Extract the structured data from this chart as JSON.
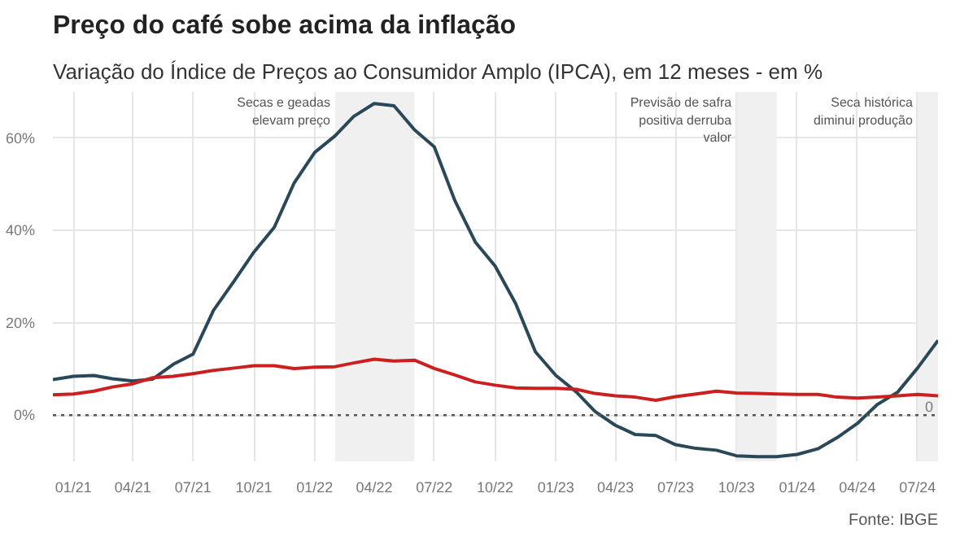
{
  "chart_data": {
    "type": "line",
    "title": "Preço do café sobe acima da inflação",
    "subtitle": "Variação do Índice de Preços ao Consumidor Amplo (IPCA), em 12 meses - em %",
    "annotations": [
      "Fonte: IBGE"
    ],
    "x": [
      "2020-12",
      "2021-01",
      "2021-02",
      "2021-03",
      "2021-04",
      "2021-05",
      "2021-06",
      "2021-07",
      "2021-08",
      "2021-09",
      "2021-10",
      "2021-11",
      "2021-12",
      "2022-01",
      "2022-02",
      "2022-03",
      "2022-04",
      "2022-05",
      "2022-06",
      "2022-07",
      "2022-08",
      "2022-09",
      "2022-10",
      "2022-11",
      "2022-12",
      "2023-01",
      "2023-02",
      "2023-03",
      "2023-04",
      "2023-05",
      "2023-06",
      "2023-07",
      "2023-08",
      "2023-09",
      "2023-10",
      "2023-11",
      "2023-12",
      "2024-01",
      "2024-02",
      "2024-03",
      "2024-04",
      "2024-05",
      "2024-06",
      "2024-07",
      "2024-08"
    ],
    "series": [
      {
        "color": "#2a4858",
        "values": [
          7.7,
          8.4,
          8.6,
          7.9,
          7.4,
          7.8,
          11.0,
          13.2,
          22.7,
          29.0,
          35.3,
          40.7,
          50.3,
          56.9,
          60.5,
          64.7,
          67.5,
          67.0,
          61.8,
          58.1,
          46.5,
          37.5,
          32.3,
          24.2,
          13.7,
          8.6,
          5.0,
          0.8,
          -2.2,
          -4.2,
          -4.4,
          -6.4,
          -7.2,
          -7.6,
          -8.8,
          -9.0,
          -9.0,
          -8.5,
          -7.3,
          -4.9,
          -1.8,
          2.3,
          5.0,
          10.2,
          16.2
        ]
      },
      {
        "color": "#cc1f1f",
        "values": [
          4.4,
          4.6,
          5.2,
          6.1,
          6.8,
          8.1,
          8.4,
          9.0,
          9.7,
          10.2,
          10.7,
          10.7,
          10.1,
          10.4,
          10.5,
          11.3,
          12.1,
          11.7,
          11.9,
          10.1,
          8.7,
          7.2,
          6.5,
          5.9,
          5.8,
          5.8,
          5.6,
          4.7,
          4.2,
          3.9,
          3.2,
          4.0,
          4.6,
          5.2,
          4.8,
          4.7,
          4.6,
          4.5,
          4.5,
          3.9,
          3.7,
          3.9,
          4.2,
          4.5,
          4.2
        ]
      }
    ],
    "xlim": [
      "2020-12",
      "2024-08"
    ],
    "xticks": [
      {
        "value": "2021-01",
        "label": "01/21"
      },
      {
        "value": "2021-04",
        "label": "04/21"
      },
      {
        "value": "2021-07",
        "label": "07/21"
      },
      {
        "value": "2021-10",
        "label": "10/21"
      },
      {
        "value": "2022-01",
        "label": "01/22"
      },
      {
        "value": "2022-04",
        "label": "04/22"
      },
      {
        "value": "2022-07",
        "label": "07/22"
      },
      {
        "value": "2022-10",
        "label": "10/22"
      },
      {
        "value": "2023-01",
        "label": "01/23"
      },
      {
        "value": "2023-04",
        "label": "04/23"
      },
      {
        "value": "2023-07",
        "label": "07/23"
      },
      {
        "value": "2023-10",
        "label": "10/23"
      },
      {
        "value": "2024-01",
        "label": "01/24"
      },
      {
        "value": "2024-04",
        "label": "04/24"
      },
      {
        "value": "2024-07",
        "label": "07/24"
      }
    ],
    "ylim": [
      -10,
      70
    ],
    "yticks": [
      {
        "value": 0,
        "label": "0%"
      },
      {
        "value": 20,
        "label": "20%"
      },
      {
        "value": 40,
        "label": "40%"
      },
      {
        "value": 60,
        "label": "60%"
      }
    ],
    "grid": true,
    "line_style": "solid",
    "marker": "none",
    "ref_lines": [
      {
        "axis": "y",
        "value": 0,
        "label": "0",
        "line_style": "dotted",
        "color": "#555555"
      }
    ],
    "bands": [
      {
        "axis": "x",
        "from": "2022-02",
        "to": "2022-06",
        "label": "Secas e geadas elevam preço",
        "color": "#f0f0f0"
      },
      {
        "axis": "x",
        "from": "2023-10",
        "to": "2023-12",
        "label": "Previsão de safra positiva derruba valor",
        "color": "#f0f0f0"
      },
      {
        "axis": "x",
        "from": "2024-07",
        "to": "2024-08",
        "label": "Seca histórica diminui produção",
        "color": "#f0f0f0"
      }
    ]
  }
}
